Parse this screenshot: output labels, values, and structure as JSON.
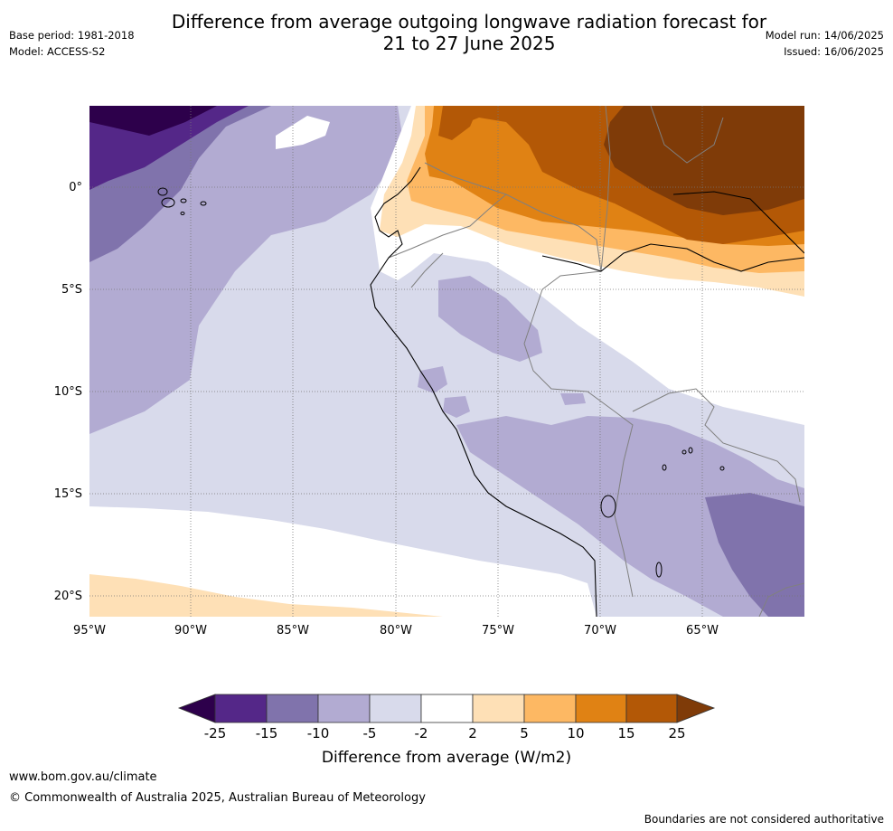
{
  "header": {
    "title_line1": "Difference from average outgoing longwave radiation forecast for",
    "title_line2": "21 to 27 June 2025",
    "base_period": "Base period: 1981-2018",
    "model": "Model: ACCESS-S2",
    "model_run": "Model run: 14/06/2025",
    "issued": "Issued: 16/06/2025"
  },
  "map": {
    "lon_labels": [
      "95°W",
      "90°W",
      "85°W",
      "80°W",
      "75°W",
      "70°W",
      "65°W"
    ],
    "lat_labels": [
      "0°",
      "5°S",
      "10°S",
      "15°S",
      "20°S"
    ],
    "colors": {
      "m25": "#2d004b",
      "m15_25": "#542788",
      "m10_15": "#8073ac",
      "m5_10": "#b2abd2",
      "m2_5": "#d8daeb",
      "neutral": "#ffffff",
      "p2_5": "#fee0b6",
      "p5_10": "#fdb863",
      "p10_15": "#e08214",
      "p15_25": "#b35806",
      "p25": "#7f3b08"
    }
  },
  "legend": {
    "ticks": [
      "-25",
      "-15",
      "-10",
      "-5",
      "-2",
      "2",
      "5",
      "10",
      "15",
      "25"
    ],
    "title": "Difference from average (W/m2)"
  },
  "footer": {
    "url": "www.bom.gov.au/climate",
    "copyright": "© Commonwealth of Australia 2025, Australian Bureau of Meteorology",
    "disclaimer": "Boundaries are not considered authoritative"
  }
}
